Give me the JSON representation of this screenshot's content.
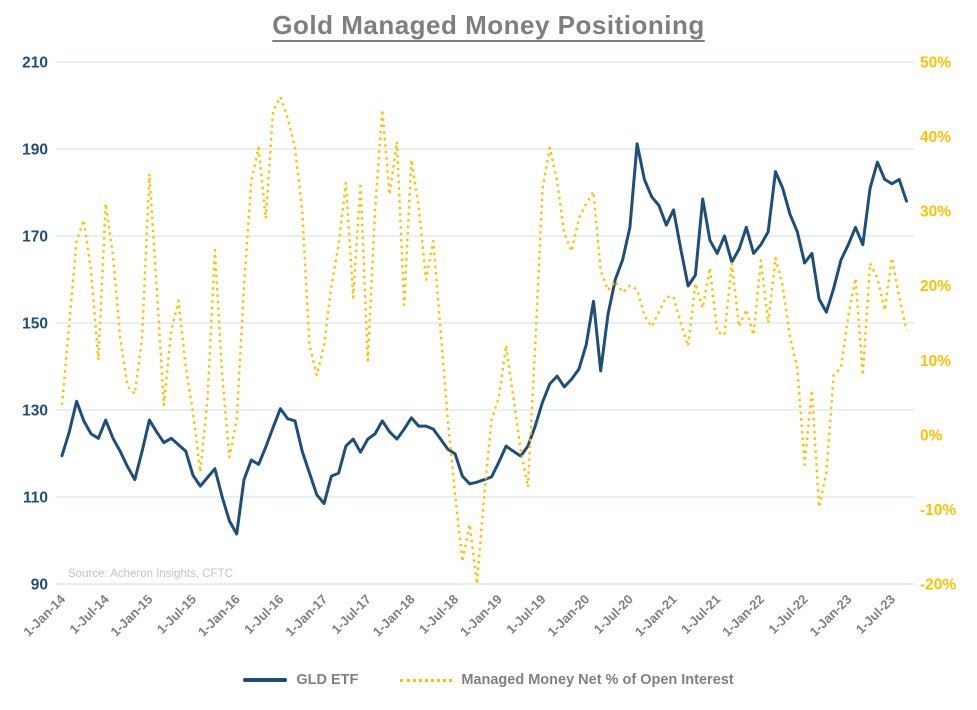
{
  "title": "Gold Managed Money Positioning",
  "source": "Source: Acheron Insights, CFTC",
  "colors": {
    "gld_line": "#1f4e79",
    "managed_money_line": "#ffc000",
    "gridline": "#d9e6f2",
    "axis_text_left": "#1f4e79",
    "axis_text_right": "#ffc000",
    "x_label_text": "#7f7f7f",
    "title_text": "#7f7f7f",
    "source_text": "#c3c3c3"
  },
  "chart_data": {
    "type": "line",
    "title": "Gold Managed Money Positioning",
    "frequency": "monthly",
    "x_start": "Jan-2014",
    "x_end": "Sep-2023",
    "grid": "horizontal-only",
    "legend_position": "bottom-center",
    "x_tick_labels": [
      "1-Jan-14",
      "1-Jul-14",
      "1-Jan-15",
      "1-Jul-15",
      "1-Jan-16",
      "1-Jul-16",
      "1-Jan-17",
      "1-Jul-17",
      "1-Jan-18",
      "1-Jul-18",
      "1-Jan-19",
      "1-Jul-19",
      "1-Jan-20",
      "1-Jul-20",
      "1-Jan-21",
      "1-Jul-21",
      "1-Jan-22",
      "1-Jul-22",
      "1-Jan-23",
      "1-Jul-23"
    ],
    "left_axis": {
      "min": 90,
      "max": 210,
      "step": 20,
      "values": [
        210,
        190,
        170,
        150,
        130,
        110,
        90
      ],
      "labels": [
        "210",
        "190",
        "170",
        "150",
        "130",
        "110",
        "90"
      ]
    },
    "right_axis": {
      "min": -20,
      "max": 50,
      "step": 10,
      "values": [
        50,
        40,
        30,
        20,
        10,
        0,
        -10,
        -20
      ],
      "labels": [
        "50%",
        "40%",
        "30%",
        "20%",
        "10%",
        "0%",
        "-10%",
        "-20%"
      ]
    },
    "series": [
      {
        "name": "GLD ETF",
        "axis": "left",
        "line_style": "solid",
        "color": "#1f4e79",
        "values": [
          119.5,
          125,
          132,
          127.5,
          124.5,
          123.5,
          127.7,
          123.5,
          120.5,
          117,
          114,
          120.5,
          127.7,
          125,
          122.5,
          123.5,
          122,
          120.5,
          115,
          112.5,
          114.5,
          116.5,
          110,
          104.5,
          101.5,
          114,
          118.5,
          117.5,
          121.5,
          126,
          130.3,
          128,
          127.5,
          120.5,
          115.5,
          110.5,
          108.5,
          114.8,
          115.5,
          121.7,
          123.3,
          120.3,
          123.3,
          124.5,
          127.5,
          125,
          123.3,
          125.6,
          128.2,
          126.3,
          126.3,
          125.6,
          123.3,
          121,
          119.9,
          114.8,
          113,
          113.4,
          114,
          114.6,
          118,
          121.7,
          120.5,
          119.4,
          121.7,
          126.3,
          131.8,
          136,
          137.8,
          135.3,
          137.1,
          139.4,
          145,
          155,
          139,
          152,
          160,
          164.5,
          172,
          191.2,
          183,
          179,
          177,
          172.5,
          176,
          167,
          158.5,
          161,
          178.5,
          169,
          166,
          170,
          164,
          167,
          172,
          166,
          168,
          171,
          184.8,
          181,
          175,
          171,
          163.8,
          166,
          155.5,
          152.5,
          158,
          164.5,
          168,
          172,
          168,
          181,
          187,
          183,
          182,
          183,
          178
        ]
      },
      {
        "name": "Managed Money Net % of Open Interest",
        "axis": "right",
        "line_style": "dotted",
        "color": "#ffc000",
        "values": [
          4,
          15,
          26,
          28.8,
          22,
          10,
          31,
          24,
          13,
          6.5,
          5.5,
          13,
          35,
          20,
          4,
          14,
          18,
          9,
          3,
          -5,
          5,
          24.8,
          8,
          -3,
          2,
          20,
          34,
          38.5,
          29,
          43.5,
          45.3,
          42.5,
          38.5,
          30,
          12,
          8,
          12,
          20,
          25.5,
          33.8,
          18.4,
          33.8,
          10,
          30,
          43.6,
          32.2,
          39.3,
          17.4,
          36.9,
          30.6,
          20.8,
          26,
          14,
          2,
          -8,
          -17,
          -12,
          -20,
          -8,
          2,
          5,
          12,
          5,
          -2,
          -7,
          12,
          33,
          38.5,
          34,
          27,
          24.6,
          29,
          31,
          32.6,
          22,
          19.4,
          20.6,
          19.1,
          20,
          19.5,
          16,
          14.5,
          16.5,
          18.5,
          18.5,
          15,
          11.9,
          20.3,
          17,
          22.4,
          13.8,
          13.4,
          23,
          14.5,
          16.8,
          13.4,
          23.4,
          15,
          23.7,
          20,
          13.1,
          9,
          -4,
          6,
          -9.7,
          -5,
          8,
          9,
          16,
          21,
          8,
          23,
          21,
          16.7,
          23.7,
          18.5,
          14
        ]
      }
    ]
  },
  "legend": {
    "items": [
      {
        "label": "GLD ETF",
        "swatch": "solid-navy-line"
      },
      {
        "label": "Managed Money Net % of Open Interest",
        "swatch": "dotted-gold-line"
      }
    ]
  }
}
